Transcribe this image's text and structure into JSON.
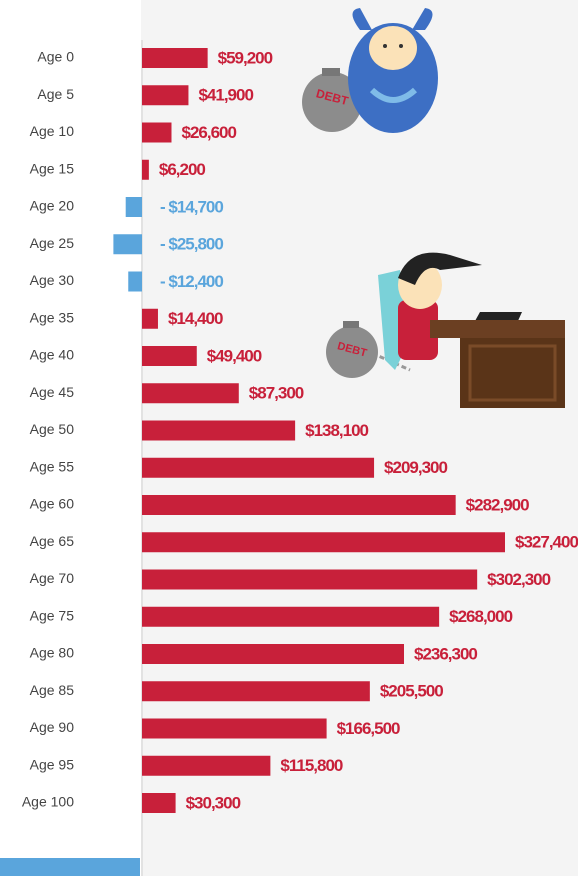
{
  "chart_data": {
    "type": "hbar",
    "categories": [
      "Age 0",
      "Age 5",
      "Age 10",
      "Age 15",
      "Age 20",
      "Age 25",
      "Age 30",
      "Age 35",
      "Age 40",
      "Age 45",
      "Age 50",
      "Age 55",
      "Age 60",
      "Age 65",
      "Age 70",
      "Age 75",
      "Age 80",
      "Age 85",
      "Age 90",
      "Age 95",
      "Age 100"
    ],
    "values": [
      59200,
      41900,
      26600,
      6200,
      -14700,
      -25800,
      -12400,
      14400,
      49400,
      87300,
      138100,
      209300,
      282900,
      327400,
      302300,
      268000,
      236300,
      205500,
      166500,
      115800,
      30300
    ],
    "value_labels": [
      "$59,200",
      "$41,900",
      "$26,600",
      "$6,200",
      "- $14,700",
      "- $25,800",
      "- $12,400",
      "$14,400",
      "$49,400",
      "$87,300",
      "$138,100",
      "$209,300",
      "$282,900",
      "$327,400",
      "$302,300",
      "$268,000",
      "$236,300",
      "$205,500",
      "$166,500",
      "$115,800",
      "$30,300"
    ],
    "color": "#c8203a",
    "negative_color": "#5aa5dc",
    "annotations": [
      "DEBT",
      "DEBT"
    ]
  }
}
